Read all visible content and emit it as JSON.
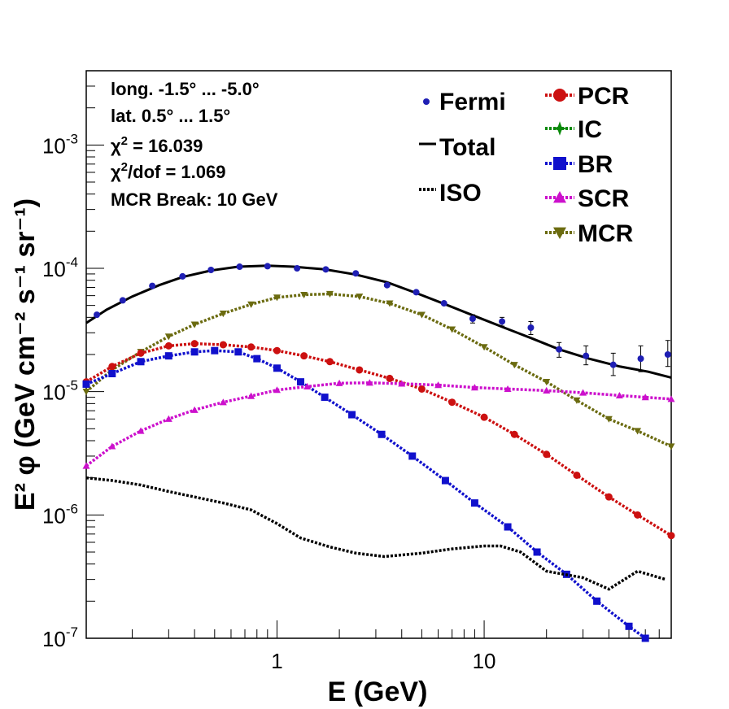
{
  "chart_data": {
    "type": "line",
    "x_scale": "log",
    "y_scale": "log",
    "xlim": [
      0.12,
      80
    ],
    "ylim": [
      1e-07,
      0.004
    ],
    "xlabel": "E (GeV)",
    "ylabel": "E² φ (GeV cm⁻² s⁻¹ sr⁻¹)",
    "x_ticks": [
      {
        "value": 1,
        "label": "1"
      },
      {
        "value": 10,
        "label": "10"
      }
    ],
    "y_ticks": [
      {
        "value": 1e-07,
        "base": "10",
        "exp": "-7"
      },
      {
        "value": 1e-06,
        "base": "10",
        "exp": "-6"
      },
      {
        "value": 1e-05,
        "base": "10",
        "exp": "-5"
      },
      {
        "value": 0.0001,
        "base": "10",
        "exp": "-4"
      },
      {
        "value": 0.001,
        "base": "10",
        "exp": "-3"
      }
    ],
    "grid": false,
    "legend_placement": "top-right",
    "annotations": {
      "long": "long. -1.5° ... -5.0°",
      "lat": "lat. 0.5° ... 1.5°",
      "chi2_symbol": "χ",
      "chi2_exp": "2",
      "chi2_value": " = 16.039",
      "chi2dof_value": "/dof = 1.069",
      "mcr_break": "MCR Break: 10 GeV"
    },
    "fermi": {
      "name": "Fermi",
      "color": "#1f1fb4",
      "points": [
        {
          "x": 0.135,
          "y": 4.2e-05,
          "err_lo": 0,
          "err_hi": 0
        },
        {
          "x": 0.18,
          "y": 5.5e-05,
          "err_lo": 0,
          "err_hi": 0
        },
        {
          "x": 0.25,
          "y": 7.2e-05,
          "err_lo": 0,
          "err_hi": 0
        },
        {
          "x": 0.35,
          "y": 8.6e-05,
          "err_lo": 0,
          "err_hi": 0
        },
        {
          "x": 0.48,
          "y": 9.7e-05,
          "err_lo": 0,
          "err_hi": 0
        },
        {
          "x": 0.66,
          "y": 0.000103,
          "err_lo": 0,
          "err_hi": 0
        },
        {
          "x": 0.9,
          "y": 0.000104,
          "err_lo": 0,
          "err_hi": 0
        },
        {
          "x": 1.25,
          "y": 0.0001,
          "err_lo": 0,
          "err_hi": 0
        },
        {
          "x": 1.72,
          "y": 9.8e-05,
          "err_lo": 0,
          "err_hi": 0
        },
        {
          "x": 2.4,
          "y": 9.1e-05,
          "err_lo": 0,
          "err_hi": 0
        },
        {
          "x": 3.4,
          "y": 7.3e-05,
          "err_lo": 0,
          "err_hi": 0
        },
        {
          "x": 4.7,
          "y": 6.4e-05,
          "err_lo": 0,
          "err_hi": 0
        },
        {
          "x": 6.4,
          "y": 5.2e-05,
          "err_lo": 0,
          "err_hi": 0
        },
        {
          "x": 8.8,
          "y": 3.9e-05,
          "err_lo": 3e-06,
          "err_hi": 3e-06
        },
        {
          "x": 12.2,
          "y": 3.7e-05,
          "err_lo": 3e-06,
          "err_hi": 3e-06
        },
        {
          "x": 16.8,
          "y": 3.3e-05,
          "err_lo": 4e-06,
          "err_hi": 4e-06
        },
        {
          "x": 23,
          "y": 2.2e-05,
          "err_lo": 3e-06,
          "err_hi": 3e-06
        },
        {
          "x": 31,
          "y": 1.95e-05,
          "err_lo": 3e-06,
          "err_hi": 4e-06
        },
        {
          "x": 42,
          "y": 1.65e-05,
          "err_lo": 3e-06,
          "err_hi": 4e-06
        },
        {
          "x": 57,
          "y": 1.85e-05,
          "err_lo": 4e-06,
          "err_hi": 5e-06
        },
        {
          "x": 77,
          "y": 2e-05,
          "err_lo": 4e-06,
          "err_hi": 6e-06
        }
      ]
    },
    "series": [
      {
        "name": "Total",
        "color": "#000000",
        "style": "solid",
        "marker": "none",
        "x": [
          0.12,
          0.15,
          0.2,
          0.27,
          0.35,
          0.48,
          0.65,
          0.9,
          1.2,
          1.7,
          2.4,
          3.4,
          4.7,
          6.5,
          9,
          12.5,
          17,
          23,
          32,
          45,
          62,
          80
        ],
        "y": [
          3.6e-05,
          4.6e-05,
          5.9e-05,
          7.3e-05,
          8.5e-05,
          9.6e-05,
          0.000103,
          0.000105,
          0.000103,
          9.8e-05,
          8.9e-05,
          7.7e-05,
          6.3e-05,
          5.1e-05,
          4.1e-05,
          3.3e-05,
          2.7e-05,
          2.2e-05,
          1.85e-05,
          1.6e-05,
          1.45e-05,
          1.3e-05
        ]
      },
      {
        "name": "MCR",
        "color": "#6b6b10",
        "style": "dotted",
        "marker": "tri-down",
        "x": [
          0.12,
          0.16,
          0.22,
          0.3,
          0.4,
          0.55,
          0.75,
          1.0,
          1.35,
          1.8,
          2.5,
          3.5,
          5,
          7,
          10,
          14,
          20,
          28,
          40,
          55,
          80
        ],
        "y": [
          1e-05,
          1.5e-05,
          2.1e-05,
          2.8e-05,
          3.5e-05,
          4.3e-05,
          5.1e-05,
          5.8e-05,
          6.1e-05,
          6.2e-05,
          5.9e-05,
          5.2e-05,
          4.2e-05,
          3.2e-05,
          2.3e-05,
          1.65e-05,
          1.2e-05,
          8.5e-06,
          6e-06,
          4.8e-06,
          3.6e-06
        ]
      },
      {
        "name": "PCR",
        "color": "#cc1010",
        "style": "dotted",
        "marker": "circle",
        "x": [
          0.12,
          0.16,
          0.22,
          0.3,
          0.4,
          0.55,
          0.75,
          1.0,
          1.35,
          1.8,
          2.5,
          3.5,
          5,
          7,
          10,
          14,
          20,
          28,
          40,
          55,
          80
        ],
        "y": [
          1.2e-05,
          1.6e-05,
          2.05e-05,
          2.35e-05,
          2.45e-05,
          2.4e-05,
          2.3e-05,
          2.15e-05,
          1.95e-05,
          1.75e-05,
          1.5e-05,
          1.28e-05,
          1.05e-05,
          8.2e-06,
          6.2e-06,
          4.5e-06,
          3.1e-06,
          2.1e-06,
          1.4e-06,
          1e-06,
          6.8e-07
        ]
      },
      {
        "name": "BR",
        "color": "#1010cc",
        "style": "dotted",
        "marker": "square",
        "x": [
          0.12,
          0.16,
          0.22,
          0.3,
          0.4,
          0.5,
          0.65,
          0.8,
          1.0,
          1.3,
          1.7,
          2.3,
          3.2,
          4.5,
          6.5,
          9,
          13,
          18,
          25,
          35,
          50,
          60
        ],
        "y": [
          1.15e-05,
          1.4e-05,
          1.75e-05,
          1.95e-05,
          2.1e-05,
          2.15e-05,
          2.1e-05,
          1.85e-05,
          1.55e-05,
          1.2e-05,
          9e-06,
          6.5e-06,
          4.5e-06,
          3e-06,
          1.9e-06,
          1.25e-06,
          8e-07,
          5e-07,
          3.3e-07,
          2e-07,
          1.25e-07,
          1e-07
        ]
      },
      {
        "name": "SCR",
        "color": "#cc10cc",
        "style": "dotted",
        "marker": "triangle",
        "x": [
          0.12,
          0.16,
          0.22,
          0.3,
          0.4,
          0.55,
          0.75,
          1.0,
          1.4,
          2.0,
          2.8,
          4,
          6,
          9,
          13,
          20,
          30,
          45,
          60,
          80
        ],
        "y": [
          2.5e-06,
          3.6e-06,
          4.8e-06,
          6e-06,
          7.1e-06,
          8.2e-06,
          9.2e-06,
          1.03e-05,
          1.1e-05,
          1.17e-05,
          1.18e-05,
          1.16e-05,
          1.13e-05,
          1.08e-05,
          1.05e-05,
          1.02e-05,
          9.8e-06,
          9.3e-06,
          9e-06,
          8.7e-06
        ]
      },
      {
        "name": "ISO",
        "color": "#000000",
        "style": "dotted",
        "marker": "none",
        "x": [
          0.12,
          0.16,
          0.22,
          0.3,
          0.4,
          0.55,
          0.75,
          1.0,
          1.3,
          1.8,
          2.4,
          3.3,
          5,
          7,
          10,
          12,
          15,
          20,
          30,
          40,
          55,
          75
        ],
        "y": [
          2e-06,
          1.9e-06,
          1.75e-06,
          1.55e-06,
          1.4e-06,
          1.25e-06,
          1.1e-06,
          8.5e-07,
          6.5e-07,
          5.5e-07,
          4.9e-07,
          4.6e-07,
          4.9e-07,
          5.3e-07,
          5.6e-07,
          5.6e-07,
          5e-07,
          3.5e-07,
          3.1e-07,
          2.5e-07,
          3.5e-07,
          3e-07
        ]
      },
      {
        "name": "IC",
        "color": "#0a8a0a",
        "style": "dotted",
        "marker": "star",
        "x": [],
        "y": []
      }
    ],
    "legend": {
      "left": [
        {
          "label": "Fermi",
          "swatch": "dot",
          "color": "#1f1fb4"
        },
        {
          "label": "Total",
          "swatch": "solid",
          "color": "#000000"
        },
        {
          "label": "ISO",
          "swatch": "dotted",
          "color": "#000000"
        }
      ],
      "right": [
        {
          "label": "PCR",
          "swatch": "circle",
          "color": "#cc1010"
        },
        {
          "label": "IC",
          "swatch": "star",
          "color": "#0a8a0a"
        },
        {
          "label": "BR",
          "swatch": "square",
          "color": "#1010cc"
        },
        {
          "label": "SCR",
          "swatch": "triangle",
          "color": "#cc10cc"
        },
        {
          "label": "MCR",
          "swatch": "tri-down",
          "color": "#6b6b10"
        }
      ]
    }
  }
}
